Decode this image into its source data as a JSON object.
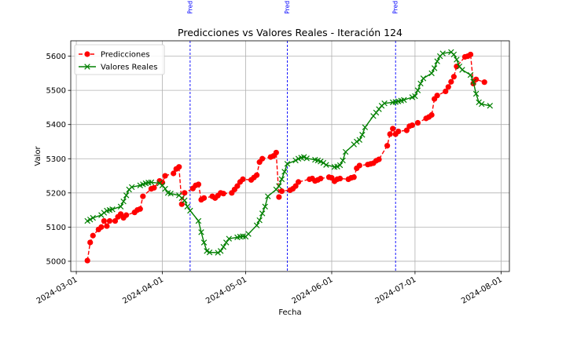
{
  "chart_data": {
    "type": "line",
    "title": "Predicciones vs Valores Reales - Iteración 124",
    "xlabel": "Fecha",
    "ylabel": "Valor",
    "xlim": [
      "2024-02-28",
      "2024-08-04"
    ],
    "ylim": [
      4970,
      5645
    ],
    "grid": true,
    "legend_position": "top-left",
    "x_ticks": [
      "2024-03-01",
      "2024-04-01",
      "2024-05-01",
      "2024-06-01",
      "2024-07-01",
      "2024-08-01"
    ],
    "y_ticks": [
      5000,
      5100,
      5200,
      5300,
      5400,
      5500,
      5600
    ],
    "vlines": [
      {
        "date": "2024-04-11",
        "label": "Pred"
      },
      {
        "date": "2024-05-16",
        "label": "Pred"
      },
      {
        "date": "2024-06-24",
        "label": "Pred"
      }
    ],
    "series": [
      {
        "name": "Predicciones",
        "color": "#ff0000",
        "style": "dashed",
        "marker": "circle",
        "points": [
          [
            "2024-03-05",
            5002
          ],
          [
            "2024-03-06",
            5055
          ],
          [
            "2024-03-07",
            5075
          ],
          [
            "2024-03-09",
            5093
          ],
          [
            "2024-03-10",
            5100
          ],
          [
            "2024-03-11",
            5118
          ],
          [
            "2024-03-12",
            5103
          ],
          [
            "2024-03-13",
            5118
          ],
          [
            "2024-03-15",
            5118
          ],
          [
            "2024-03-16",
            5130
          ],
          [
            "2024-03-17",
            5138
          ],
          [
            "2024-03-18",
            5127
          ],
          [
            "2024-03-19",
            5135
          ],
          [
            "2024-03-22",
            5143
          ],
          [
            "2024-03-23",
            5150
          ],
          [
            "2024-03-24",
            5153
          ],
          [
            "2024-03-25",
            5190
          ],
          [
            "2024-03-28",
            5212
          ],
          [
            "2024-03-29",
            5215
          ],
          [
            "2024-03-31",
            5235
          ],
          [
            "2024-04-01",
            5230
          ],
          [
            "2024-04-02",
            5250
          ],
          [
            "2024-04-05",
            5257
          ],
          [
            "2024-04-06",
            5270
          ],
          [
            "2024-04-07",
            5276
          ],
          [
            "2024-04-08",
            5167
          ],
          [
            "2024-04-09",
            5200
          ],
          [
            "2024-04-12",
            5213
          ],
          [
            "2024-04-13",
            5222
          ],
          [
            "2024-04-14",
            5225
          ],
          [
            "2024-04-15",
            5180
          ],
          [
            "2024-04-16",
            5185
          ],
          [
            "2024-04-19",
            5190
          ],
          [
            "2024-04-20",
            5185
          ],
          [
            "2024-04-21",
            5192
          ],
          [
            "2024-04-22",
            5200
          ],
          [
            "2024-04-23",
            5198
          ],
          [
            "2024-04-26",
            5200
          ],
          [
            "2024-04-27",
            5210
          ],
          [
            "2024-04-28",
            5220
          ],
          [
            "2024-04-29",
            5232
          ],
          [
            "2024-04-30",
            5240
          ],
          [
            "2024-05-03",
            5238
          ],
          [
            "2024-05-04",
            5245
          ],
          [
            "2024-05-05",
            5252
          ],
          [
            "2024-05-06",
            5290
          ],
          [
            "2024-05-07",
            5300
          ],
          [
            "2024-05-10",
            5305
          ],
          [
            "2024-05-11",
            5308
          ],
          [
            "2024-05-12",
            5318
          ],
          [
            "2024-05-13",
            5188
          ],
          [
            "2024-05-14",
            5205
          ],
          [
            "2024-05-17",
            5208
          ],
          [
            "2024-05-18",
            5212
          ],
          [
            "2024-05-19",
            5220
          ],
          [
            "2024-05-20",
            5232
          ],
          [
            "2024-05-24",
            5240
          ],
          [
            "2024-05-25",
            5242
          ],
          [
            "2024-05-26",
            5235
          ],
          [
            "2024-05-27",
            5238
          ],
          [
            "2024-05-28",
            5242
          ],
          [
            "2024-05-31",
            5246
          ],
          [
            "2024-06-01",
            5244
          ],
          [
            "2024-06-02",
            5234
          ],
          [
            "2024-06-03",
            5240
          ],
          [
            "2024-06-04",
            5242
          ],
          [
            "2024-06-07",
            5240
          ],
          [
            "2024-06-08",
            5244
          ],
          [
            "2024-06-09",
            5246
          ],
          [
            "2024-06-10",
            5272
          ],
          [
            "2024-06-11",
            5280
          ],
          [
            "2024-06-14",
            5283
          ],
          [
            "2024-06-15",
            5285
          ],
          [
            "2024-06-16",
            5287
          ],
          [
            "2024-06-17",
            5294
          ],
          [
            "2024-06-18",
            5298
          ],
          [
            "2024-06-21",
            5338
          ],
          [
            "2024-06-22",
            5372
          ],
          [
            "2024-06-23",
            5388
          ],
          [
            "2024-06-24",
            5372
          ],
          [
            "2024-06-25",
            5380
          ],
          [
            "2024-06-28",
            5383
          ],
          [
            "2024-06-29",
            5395
          ],
          [
            "2024-06-30",
            5398
          ],
          [
            "2024-07-02",
            5405
          ],
          [
            "2024-07-05",
            5418
          ],
          [
            "2024-07-06",
            5422
          ],
          [
            "2024-07-07",
            5428
          ],
          [
            "2024-07-08",
            5475
          ],
          [
            "2024-07-09",
            5485
          ],
          [
            "2024-07-12",
            5497
          ],
          [
            "2024-07-13",
            5510
          ],
          [
            "2024-07-14",
            5525
          ],
          [
            "2024-07-15",
            5540
          ],
          [
            "2024-07-16",
            5570
          ],
          [
            "2024-07-19",
            5598
          ],
          [
            "2024-07-20",
            5600
          ],
          [
            "2024-07-21",
            5605
          ],
          [
            "2024-07-22",
            5520
          ],
          [
            "2024-07-23",
            5532
          ],
          [
            "2024-07-26",
            5524
          ]
        ]
      },
      {
        "name": "Valores Reales",
        "color": "#008000",
        "style": "solid",
        "marker": "x",
        "points": [
          [
            "2024-03-05",
            5118
          ],
          [
            "2024-03-06",
            5122
          ],
          [
            "2024-03-07",
            5127
          ],
          [
            "2024-03-10",
            5135
          ],
          [
            "2024-03-11",
            5142
          ],
          [
            "2024-03-12",
            5148
          ],
          [
            "2024-03-13",
            5150
          ],
          [
            "2024-03-14",
            5152
          ],
          [
            "2024-03-17",
            5160
          ],
          [
            "2024-03-18",
            5175
          ],
          [
            "2024-03-19",
            5193
          ],
          [
            "2024-03-20",
            5210
          ],
          [
            "2024-03-21",
            5217
          ],
          [
            "2024-03-24",
            5222
          ],
          [
            "2024-03-25",
            5225
          ],
          [
            "2024-03-26",
            5228
          ],
          [
            "2024-03-27",
            5230
          ],
          [
            "2024-03-28",
            5231
          ],
          [
            "2024-03-31",
            5228
          ],
          [
            "2024-04-01",
            5222
          ],
          [
            "2024-04-02",
            5212
          ],
          [
            "2024-04-03",
            5200
          ],
          [
            "2024-04-04",
            5198
          ],
          [
            "2024-04-07",
            5193
          ],
          [
            "2024-04-08",
            5185
          ],
          [
            "2024-04-09",
            5178
          ],
          [
            "2024-04-10",
            5160
          ],
          [
            "2024-04-11",
            5148
          ],
          [
            "2024-04-14",
            5118
          ],
          [
            "2024-04-15",
            5085
          ],
          [
            "2024-04-16",
            5055
          ],
          [
            "2024-04-17",
            5030
          ],
          [
            "2024-04-18",
            5026
          ],
          [
            "2024-04-21",
            5025
          ],
          [
            "2024-04-22",
            5030
          ],
          [
            "2024-04-23",
            5042
          ],
          [
            "2024-04-24",
            5055
          ],
          [
            "2024-04-25",
            5066
          ],
          [
            "2024-04-28",
            5070
          ],
          [
            "2024-04-29",
            5072
          ],
          [
            "2024-04-30",
            5073
          ],
          [
            "2024-05-01",
            5072
          ],
          [
            "2024-05-02",
            5080
          ],
          [
            "2024-05-05",
            5105
          ],
          [
            "2024-05-06",
            5120
          ],
          [
            "2024-05-07",
            5140
          ],
          [
            "2024-05-08",
            5160
          ],
          [
            "2024-05-09",
            5190
          ],
          [
            "2024-05-12",
            5210
          ],
          [
            "2024-05-13",
            5220
          ],
          [
            "2024-05-14",
            5240
          ],
          [
            "2024-05-15",
            5262
          ],
          [
            "2024-05-16",
            5285
          ],
          [
            "2024-05-19",
            5295
          ],
          [
            "2024-05-20",
            5300
          ],
          [
            "2024-05-21",
            5303
          ],
          [
            "2024-05-22",
            5305
          ],
          [
            "2024-05-23",
            5301
          ],
          [
            "2024-05-26",
            5297
          ],
          [
            "2024-05-27",
            5295
          ],
          [
            "2024-05-28",
            5292
          ],
          [
            "2024-05-29",
            5288
          ],
          [
            "2024-05-30",
            5282
          ],
          [
            "2024-06-02",
            5276
          ],
          [
            "2024-06-03",
            5277
          ],
          [
            "2024-06-04",
            5281
          ],
          [
            "2024-06-05",
            5295
          ],
          [
            "2024-06-06",
            5320
          ],
          [
            "2024-06-09",
            5342
          ],
          [
            "2024-06-10",
            5350
          ],
          [
            "2024-06-11",
            5355
          ],
          [
            "2024-06-12",
            5370
          ],
          [
            "2024-06-13",
            5392
          ],
          [
            "2024-06-16",
            5425
          ],
          [
            "2024-06-17",
            5435
          ],
          [
            "2024-06-18",
            5445
          ],
          [
            "2024-06-19",
            5455
          ],
          [
            "2024-06-20",
            5462
          ],
          [
            "2024-06-23",
            5465
          ],
          [
            "2024-06-24",
            5466
          ],
          [
            "2024-06-25",
            5468
          ],
          [
            "2024-06-26",
            5470
          ],
          [
            "2024-06-27",
            5472
          ],
          [
            "2024-06-30",
            5480
          ],
          [
            "2024-07-01",
            5483
          ],
          [
            "2024-07-02",
            5500
          ],
          [
            "2024-07-03",
            5520
          ],
          [
            "2024-07-04",
            5535
          ],
          [
            "2024-07-07",
            5550
          ],
          [
            "2024-07-08",
            5565
          ],
          [
            "2024-07-09",
            5585
          ],
          [
            "2024-07-10",
            5600
          ],
          [
            "2024-07-11",
            5608
          ],
          [
            "2024-07-14",
            5612
          ],
          [
            "2024-07-15",
            5605
          ],
          [
            "2024-07-16",
            5590
          ],
          [
            "2024-07-17",
            5570
          ],
          [
            "2024-07-18",
            5560
          ],
          [
            "2024-07-21",
            5545
          ],
          [
            "2024-07-22",
            5525
          ],
          [
            "2024-07-23",
            5490
          ],
          [
            "2024-07-24",
            5465
          ],
          [
            "2024-07-25",
            5460
          ],
          [
            "2024-07-28",
            5455
          ]
        ]
      }
    ]
  }
}
